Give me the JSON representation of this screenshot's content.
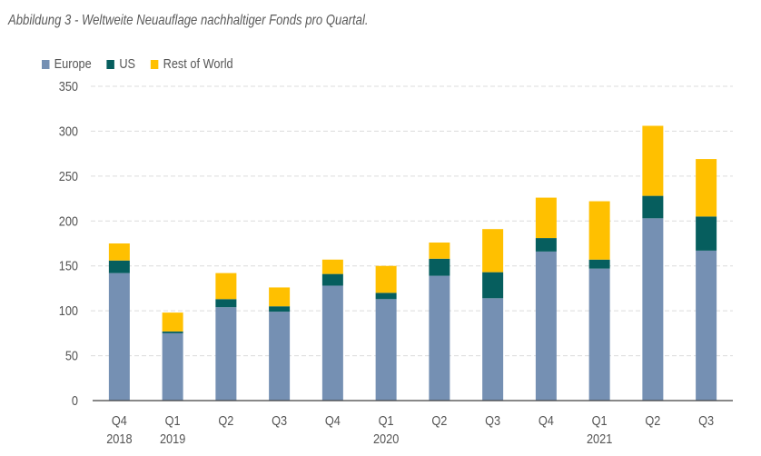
{
  "title": "Abbildung 3 - Weltweite Neuauflage nachhaltiger Fonds  pro Quartal.",
  "chart_data": {
    "type": "bar",
    "stacked": true,
    "title": "Abbildung 3 - Weltweite Neuauflage nachhaltiger Fonds  pro Quartal.",
    "xlabel": "",
    "ylabel": "",
    "ylim": [
      0,
      350
    ],
    "yticks": [
      0,
      50,
      100,
      150,
      200,
      250,
      300,
      350
    ],
    "grid": true,
    "legend_position": "top-left",
    "categories": [
      {
        "label": "Q4",
        "year": "2018"
      },
      {
        "label": "Q1",
        "year": "2019"
      },
      {
        "label": "Q2",
        "year": ""
      },
      {
        "label": "Q3",
        "year": ""
      },
      {
        "label": "Q4",
        "year": ""
      },
      {
        "label": "Q1",
        "year": "2020"
      },
      {
        "label": "Q2",
        "year": ""
      },
      {
        "label": "Q3",
        "year": ""
      },
      {
        "label": "Q4",
        "year": ""
      },
      {
        "label": "Q1",
        "year": "2021"
      },
      {
        "label": "Q2",
        "year": ""
      },
      {
        "label": "Q3",
        "year": ""
      }
    ],
    "series": [
      {
        "name": "Europe",
        "color": "#7590b3",
        "values": [
          142,
          75,
          104,
          99,
          128,
          113,
          139,
          114,
          166,
          147,
          203,
          167
        ]
      },
      {
        "name": "US",
        "color": "#065e5e",
        "values": [
          14,
          2,
          9,
          6,
          13,
          7,
          19,
          29,
          15,
          10,
          25,
          38
        ]
      },
      {
        "name": "Rest of World",
        "color": "#ffc000",
        "values": [
          19,
          21,
          29,
          21,
          16,
          30,
          18,
          48,
          45,
          65,
          78,
          64
        ]
      }
    ]
  }
}
